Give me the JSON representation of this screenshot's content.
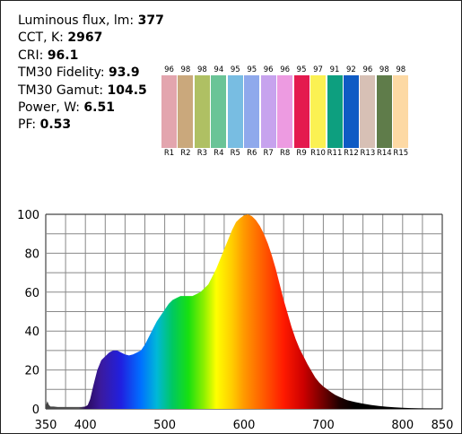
{
  "metrics": [
    {
      "label": "Luminous flux, lm: ",
      "value": "377"
    },
    {
      "label": "CCT, K: ",
      "value": "2967"
    },
    {
      "label": "CRI: ",
      "value": "96.1"
    },
    {
      "label": "TM30 Fidelity: ",
      "value": "93.9"
    },
    {
      "label": "TM30 Gamut: ",
      "value": "104.5"
    },
    {
      "label": "Power, W:  ",
      "value": "6.51"
    },
    {
      "label": "PF:  ",
      "value": "0.53"
    }
  ],
  "chart_data": [
    {
      "type": "bar",
      "title": "",
      "categories": [
        "R1",
        "R2",
        "R3",
        "R4",
        "R5",
        "R6",
        "R7",
        "R8",
        "R9",
        "R10",
        "R11",
        "R12",
        "R13",
        "R14",
        "R15"
      ],
      "values": [
        96,
        98,
        98,
        94,
        95,
        95,
        96,
        96,
        95,
        97,
        91,
        92,
        96,
        98,
        98
      ],
      "colors": [
        "#e3a5ae",
        "#caa87c",
        "#afc063",
        "#6ac497",
        "#78bde2",
        "#8fa9ec",
        "#c7a3ee",
        "#ed9be1",
        "#e41a4e",
        "#fbf152",
        "#0d9f7f",
        "#0f5bc4",
        "#d7c0b5",
        "#5f7c4a",
        "#fdd9a4"
      ]
    },
    {
      "type": "area",
      "title": "",
      "xlabel": "",
      "ylabel": "",
      "xlim": [
        350,
        850
      ],
      "ylim": [
        0,
        100
      ],
      "xticks": [
        350,
        400,
        500,
        600,
        700,
        800,
        850
      ],
      "yticks": [
        0,
        20,
        40,
        60,
        80,
        100
      ],
      "grid": true,
      "x": [
        350,
        352,
        354,
        356,
        360,
        365,
        370,
        375,
        380,
        385,
        390,
        395,
        400,
        403,
        406,
        410,
        415,
        420,
        425,
        430,
        435,
        440,
        445,
        450,
        455,
        460,
        465,
        470,
        475,
        480,
        485,
        490,
        495,
        500,
        505,
        510,
        515,
        520,
        525,
        530,
        535,
        540,
        545,
        550,
        555,
        560,
        565,
        570,
        575,
        580,
        585,
        590,
        595,
        600,
        605,
        610,
        615,
        620,
        625,
        630,
        635,
        640,
        645,
        650,
        655,
        660,
        665,
        670,
        675,
        680,
        685,
        690,
        695,
        700,
        705,
        710,
        715,
        720,
        730,
        740,
        750,
        760,
        770,
        780,
        790,
        800,
        810,
        820,
        830,
        840,
        850
      ],
      "y": [
        1.5,
        4,
        2,
        1.2,
        1.2,
        1,
        1,
        1,
        1,
        1,
        1,
        1,
        1.2,
        2,
        5,
        12,
        20,
        25,
        27,
        29,
        30,
        30,
        29,
        28,
        27.5,
        28,
        29,
        30,
        33,
        37,
        41,
        45,
        48,
        51,
        54,
        56,
        57,
        58,
        58,
        58,
        58,
        59,
        60,
        62,
        64,
        68,
        72,
        77,
        82,
        87,
        92,
        96,
        98,
        99.5,
        100,
        99,
        97,
        94,
        90,
        85,
        79,
        72,
        64,
        56,
        49,
        42,
        36,
        31,
        27,
        23,
        19.5,
        16,
        13.5,
        11.5,
        10,
        8.5,
        7.2,
        6.2,
        4.5,
        3.5,
        2.7,
        2,
        1.5,
        1.1,
        0.8,
        0.6,
        0.4,
        0.3,
        0.25,
        0.2,
        0.15
      ]
    }
  ]
}
